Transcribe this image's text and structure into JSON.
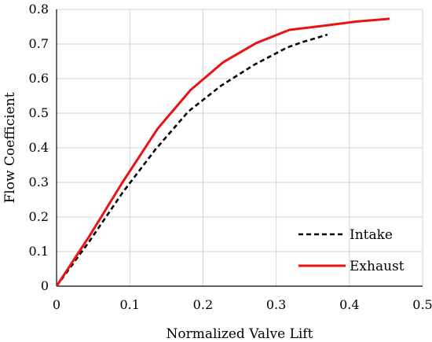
{
  "chart_data": {
    "type": "line",
    "title": "",
    "xlabel": "Normalized Valve Lift",
    "ylabel": "Flow Coefficient",
    "xlim": [
      0,
      0.5
    ],
    "ylim": [
      0,
      0.8
    ],
    "xticks": [
      0,
      0.1,
      0.2,
      0.3,
      0.4,
      0.5
    ],
    "xtick_labels": [
      "0",
      "0.1",
      "0.2",
      "0.3",
      "0.4",
      "0.5"
    ],
    "yticks": [
      0,
      0.1,
      0.2,
      0.3,
      0.4,
      0.5,
      0.6,
      0.7,
      0.8
    ],
    "ytick_labels": [
      "0",
      "0.1",
      "0.2",
      "0.3",
      "0.4",
      "0.5",
      "0.6",
      "0.7",
      "0.8"
    ],
    "grid": true,
    "legend_position": "bottom-right",
    "series": [
      {
        "name": "Intake",
        "color": "#000000",
        "dash": "dashed",
        "x": [
          0,
          0.045,
          0.09,
          0.135,
          0.18,
          0.225,
          0.27,
          0.315,
          0.335,
          0.37
        ],
        "y": [
          0,
          0.13,
          0.27,
          0.395,
          0.505,
          0.58,
          0.64,
          0.69,
          0.705,
          0.727
        ]
      },
      {
        "name": "Exhaust",
        "color": "#ee1111",
        "dash": "solid",
        "x": [
          0,
          0.045,
          0.09,
          0.138,
          0.183,
          0.228,
          0.273,
          0.318,
          0.365,
          0.41,
          0.455
        ],
        "y": [
          0,
          0.145,
          0.3,
          0.455,
          0.567,
          0.648,
          0.703,
          0.741,
          0.753,
          0.765,
          0.773
        ]
      }
    ]
  }
}
